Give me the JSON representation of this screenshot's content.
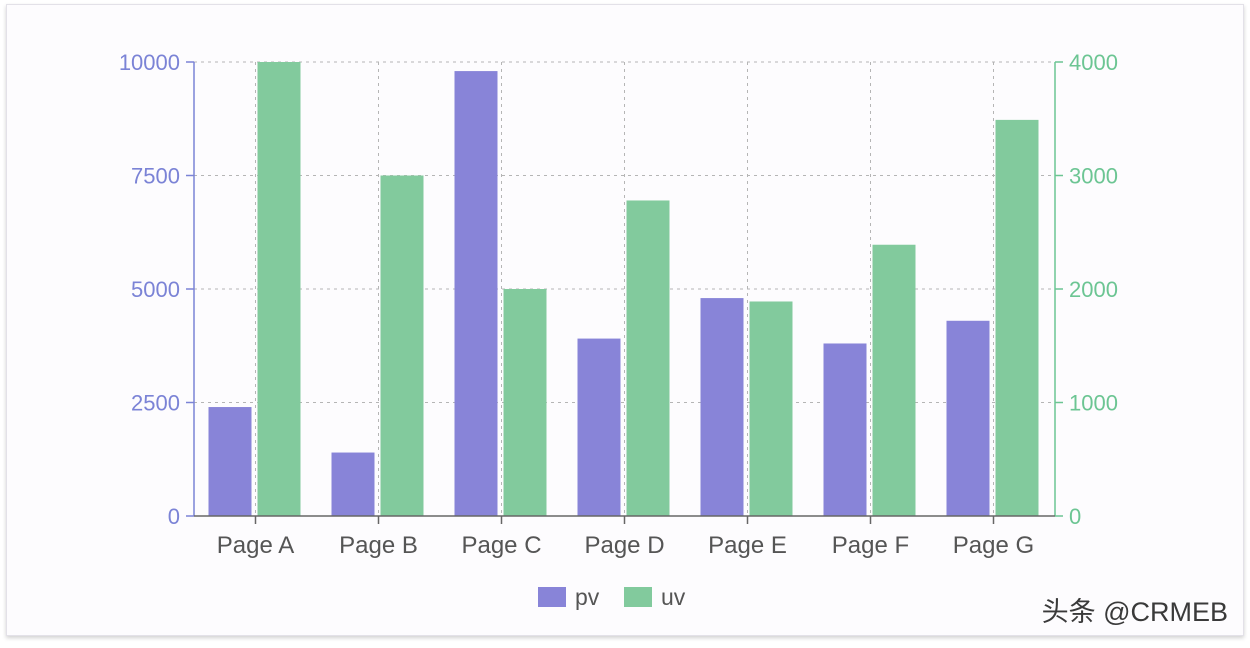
{
  "chart_data": {
    "type": "bar",
    "categories": [
      "Page A",
      "Page B",
      "Page C",
      "Page D",
      "Page E",
      "Page F",
      "Page G"
    ],
    "series": [
      {
        "name": "pv",
        "axis": "left",
        "color": "#8884d8",
        "values": [
          2400,
          1398,
          9800,
          3908,
          4800,
          3800,
          4300
        ]
      },
      {
        "name": "uv",
        "axis": "right",
        "color": "#82ca9d",
        "values": [
          4000,
          3000,
          2000,
          2780,
          1890,
          2390,
          3490
        ]
      }
    ],
    "y_left": {
      "ticks": [
        "0",
        "2500",
        "5000",
        "7500",
        "10000"
      ],
      "range": [
        0,
        10000
      ],
      "color": "#7b83d6"
    },
    "y_right": {
      "ticks": [
        "0",
        "1000",
        "2000",
        "3000",
        "4000"
      ],
      "range": [
        0,
        4000
      ],
      "color": "#6cc593"
    },
    "grid": true,
    "legend_position": "bottom-center"
  },
  "watermark": "头条 @CRMEB"
}
